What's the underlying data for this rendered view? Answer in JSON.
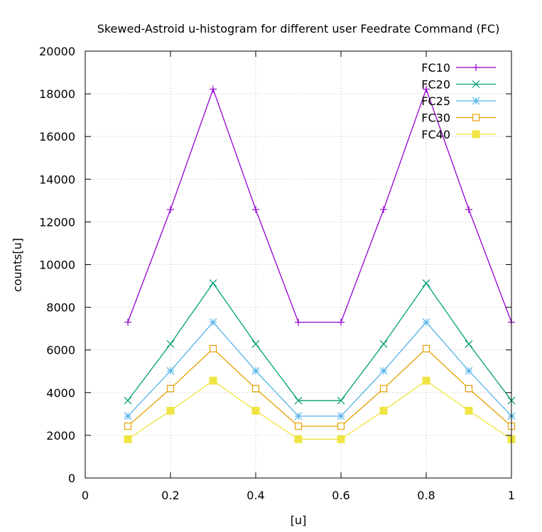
{
  "chart_data": {
    "type": "line",
    "title": "Skewed-Astroid u-histogram for different user Feedrate Command (FC)",
    "xlabel": "[u]",
    "ylabel": "counts[u]",
    "xlim": [
      0,
      1
    ],
    "ylim": [
      0,
      20000
    ],
    "xticks": [
      0,
      0.2,
      0.4,
      0.6,
      0.8,
      1
    ],
    "xtick_labels": [
      "0",
      "0.2",
      "0.4",
      "0.6",
      "0.8",
      "1"
    ],
    "yticks": [
      0,
      2000,
      4000,
      6000,
      8000,
      10000,
      12000,
      14000,
      16000,
      18000,
      20000
    ],
    "ytick_labels": [
      "0",
      "2000",
      "4000",
      "6000",
      "8000",
      "10000",
      "12000",
      "14000",
      "16000",
      "18000",
      "20000"
    ],
    "grid": true,
    "legend_position": "top-right",
    "x": [
      0.1,
      0.2,
      0.3,
      0.4,
      0.5,
      0.6,
      0.7,
      0.8,
      0.9,
      1.0
    ],
    "series": [
      {
        "name": "FC10",
        "color": "#9400d3",
        "marker": "plus",
        "values": [
          7300,
          12580,
          18220,
          12580,
          7300,
          7300,
          12580,
          18220,
          12580,
          7300
        ]
      },
      {
        "name": "FC20",
        "color": "#009e73",
        "marker": "cross",
        "values": [
          3630,
          6280,
          9130,
          6280,
          3630,
          3630,
          6280,
          9130,
          6280,
          3630
        ]
      },
      {
        "name": "FC25",
        "color": "#56b4e9",
        "marker": "star",
        "values": [
          2900,
          5020,
          7300,
          5020,
          2900,
          2900,
          5020,
          7300,
          5020,
          2900
        ]
      },
      {
        "name": "FC30",
        "color": "#e69f00",
        "marker": "open-square",
        "values": [
          2430,
          4190,
          6060,
          4190,
          2430,
          2430,
          4190,
          6060,
          4190,
          2430
        ]
      },
      {
        "name": "FC40",
        "color": "#f0e442",
        "marker": "filled-square",
        "values": [
          1820,
          3150,
          4560,
          3150,
          1820,
          1820,
          3150,
          4560,
          3150,
          1820
        ]
      }
    ]
  }
}
